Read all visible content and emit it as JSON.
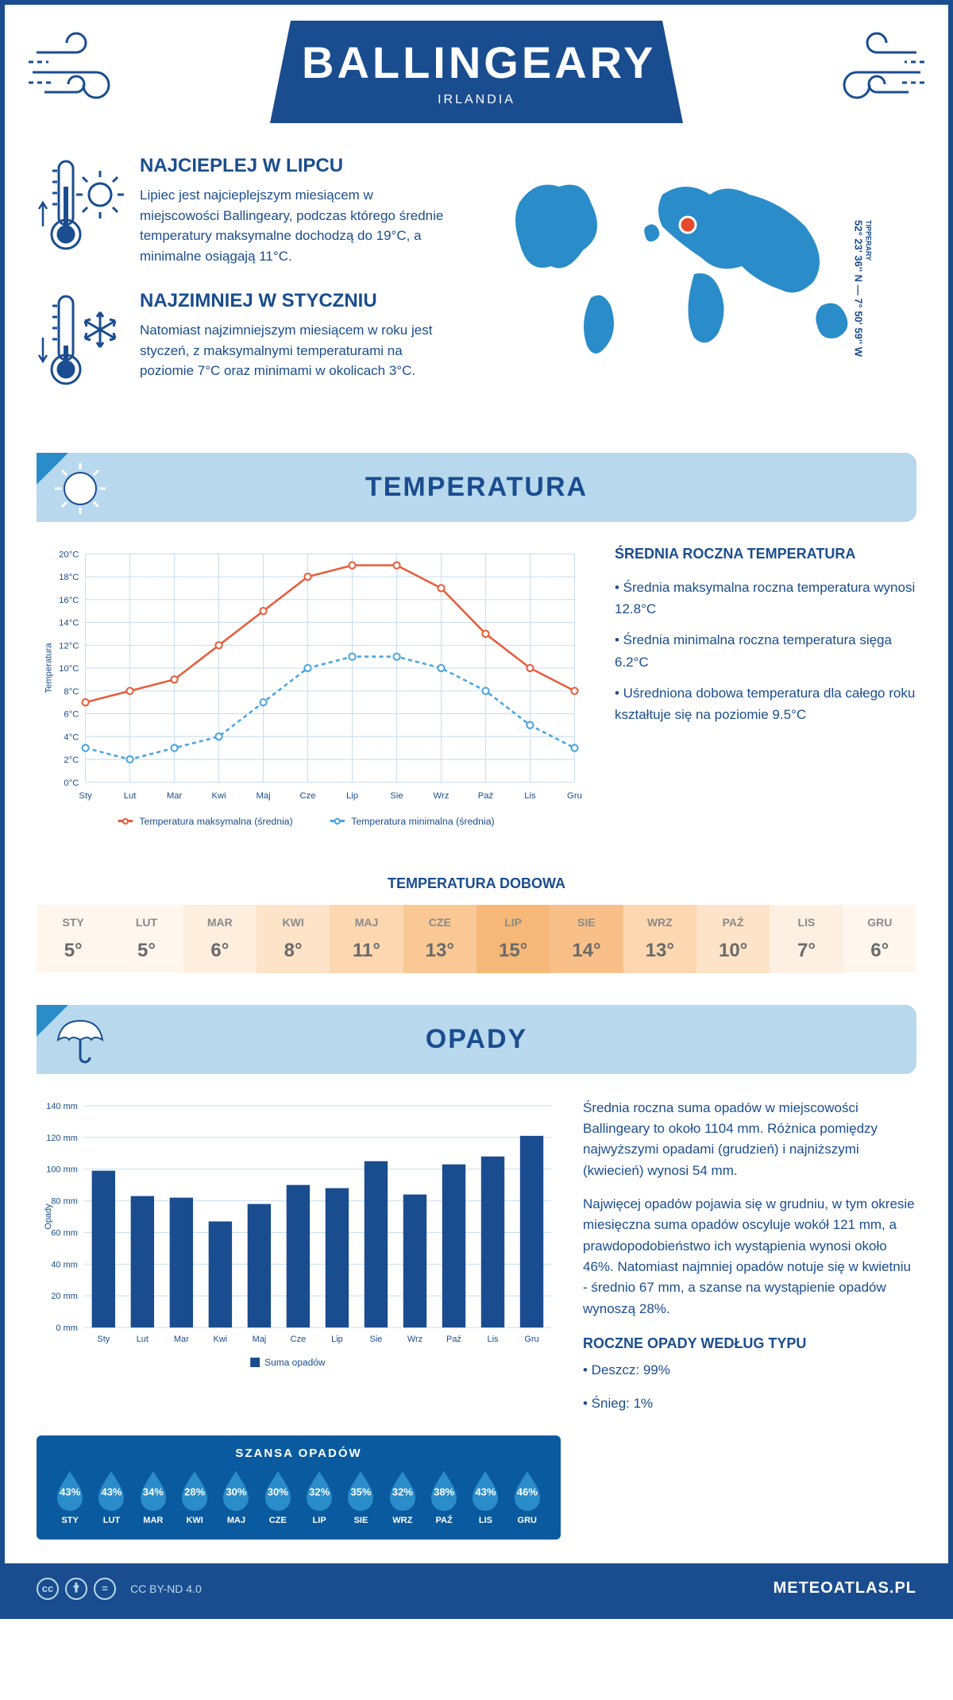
{
  "header": {
    "city": "BALLINGEARY",
    "country": "IRLANDIA"
  },
  "coords": {
    "main": "52° 23' 36'' N — 7° 50' 59'' W",
    "sub": "TIPPERARY"
  },
  "hot": {
    "title": "NAJCIEPLEJ W LIPCU",
    "text": "Lipiec jest najcieplejszym miesiącem w miejscowości Ballingeary, podczas którego średnie temperatury maksymalne dochodzą do 19°C, a minimalne osiągają 11°C."
  },
  "cold": {
    "title": "NAJZIMNIEJ W STYCZNIU",
    "text": "Natomiast najzimniejszym miesiącem w roku jest styczeń, z maksymalnymi temperaturami na poziomie 7°C oraz minimami w okolicach 3°C."
  },
  "section_temp": "TEMPERATURA",
  "section_precip": "OPADY",
  "temp_chart": {
    "months": [
      "Sty",
      "Lut",
      "Mar",
      "Kwi",
      "Maj",
      "Cze",
      "Lip",
      "Sie",
      "Wrz",
      "Paź",
      "Lis",
      "Gru"
    ],
    "max_series": [
      7,
      8,
      9,
      12,
      15,
      18,
      19,
      19,
      17,
      13,
      10,
      8
    ],
    "min_series": [
      3,
      2,
      3,
      4,
      7,
      10,
      11,
      11,
      10,
      8,
      5,
      3
    ],
    "y_min": 0,
    "y_max": 20,
    "y_step": 2,
    "max_color": "#e85d3a",
    "min_color": "#4ba5e0",
    "grid_color": "#c9ddee",
    "y_label": "Temperatura",
    "legend_max": "Temperatura maksymalna (średnia)",
    "legend_min": "Temperatura minimalna (średnia)"
  },
  "temp_stats": {
    "title": "ŚREDNIA ROCZNA TEMPERATURA",
    "p1": "• Średnia maksymalna roczna temperatura wynosi 12.8°C",
    "p2": "• Średnia minimalna roczna temperatura sięga 6.2°C",
    "p3": "• Uśredniona dobowa temperatura dla całego roku kształtuje się na poziomie 9.5°C"
  },
  "daily_temp": {
    "title": "TEMPERATURA DOBOWA",
    "months": [
      "STY",
      "LUT",
      "MAR",
      "KWI",
      "MAJ",
      "CZE",
      "LIP",
      "SIE",
      "WRZ",
      "PAŹ",
      "LIS",
      "GRU"
    ],
    "values": [
      "5°",
      "5°",
      "6°",
      "8°",
      "11°",
      "13°",
      "15°",
      "14°",
      "13°",
      "10°",
      "7°",
      "6°"
    ],
    "colors": [
      "#fff6ee",
      "#fff6ee",
      "#fdeede",
      "#fde3c8",
      "#fcd7b0",
      "#f9c894",
      "#f6b878",
      "#f8c088",
      "#fcd7b0",
      "#fde3c8",
      "#fdf0e2",
      "#fff6ee"
    ]
  },
  "precip_chart": {
    "months": [
      "Sty",
      "Lut",
      "Mar",
      "Kwi",
      "Maj",
      "Cze",
      "Lip",
      "Sie",
      "Wrz",
      "Paź",
      "Lis",
      "Gru"
    ],
    "values": [
      99,
      83,
      82,
      67,
      78,
      90,
      88,
      105,
      84,
      103,
      108,
      121
    ],
    "y_min": 0,
    "y_max": 140,
    "y_step": 20,
    "bar_color": "#1a4d8f",
    "grid_color": "#c9ddee",
    "y_label": "Opady",
    "legend": "Suma opadów"
  },
  "precip_text": {
    "p1": "Średnia roczna suma opadów w miejscowości Ballingeary to około 1104 mm. Różnica pomiędzy najwyższymi opadami (grudzień) i najniższymi (kwiecień) wynosi 54 mm.",
    "p2": "Najwięcej opadów pojawia się w grudniu, w tym okresie miesięczna suma opadów oscyluje wokół 121 mm, a prawdopodobieństwo ich wystąpienia wynosi około 46%. Natomiast najmniej opadów notuje się w kwietniu - średnio 67 mm, a szanse na wystąpienie opadów wynoszą 28%."
  },
  "precip_type": {
    "title": "ROCZNE OPADY WEDŁUG TYPU",
    "rain": "• Deszcz: 99%",
    "snow": "• Śnieg: 1%"
  },
  "chance": {
    "title": "SZANSA OPADÓW",
    "months": [
      "STY",
      "LUT",
      "MAR",
      "KWI",
      "MAJ",
      "CZE",
      "LIP",
      "SIE",
      "WRZ",
      "PAŹ",
      "LIS",
      "GRU"
    ],
    "values": [
      "43%",
      "43%",
      "34%",
      "28%",
      "30%",
      "30%",
      "32%",
      "35%",
      "32%",
      "38%",
      "43%",
      "46%"
    ],
    "drop_color": "#2a8cc9"
  },
  "footer": {
    "license": "CC BY-ND 4.0",
    "site": "METEOATLAS.PL"
  },
  "icons": {
    "primary_color": "#1a4d8f",
    "accent_blue": "#4ba5e0"
  }
}
